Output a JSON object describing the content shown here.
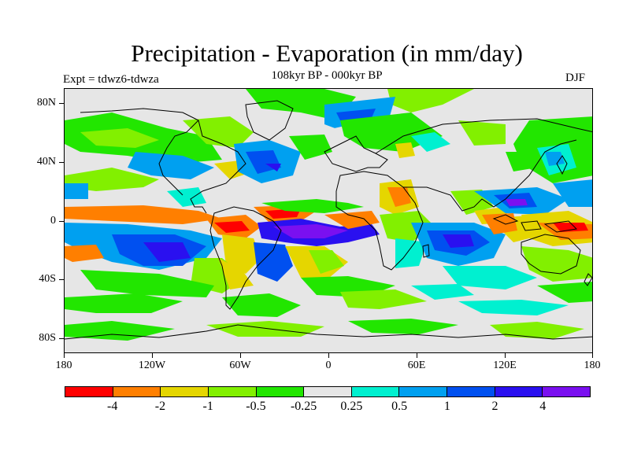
{
  "title": "Precipitation - Evaporation (in mm/day)",
  "subtitle": "108kyr BP - 000kyr BP",
  "left_label": "Expt = tdwz6-tdwza",
  "right_label": "DJF",
  "y_axis_labels": [
    "80N",
    "40N",
    "0",
    "40S",
    "80S"
  ],
  "x_axis_labels": [
    "180",
    "120W",
    "60W",
    "0",
    "60E",
    "120E",
    "180"
  ],
  "colorbar": {
    "colors": [
      "#ff0000",
      "#ff7f00",
      "#e5d600",
      "#82f000",
      "#22e600",
      "#e6e6e6",
      "#00f0d0",
      "#00a0f0",
      "#0050f0",
      "#2a10f0",
      "#7a10f0"
    ],
    "labels": [
      "-4",
      "-2",
      "-1",
      "-0.5",
      "-0.25",
      "0.25",
      "0.5",
      "1",
      "2",
      "4"
    ]
  },
  "map_data": {
    "projection": "cylindrical equidistant",
    "lon_range": [
      -180,
      180
    ],
    "lat_range": [
      -90,
      90
    ],
    "field": "precipitation minus evaporation anomaly, DJF"
  }
}
